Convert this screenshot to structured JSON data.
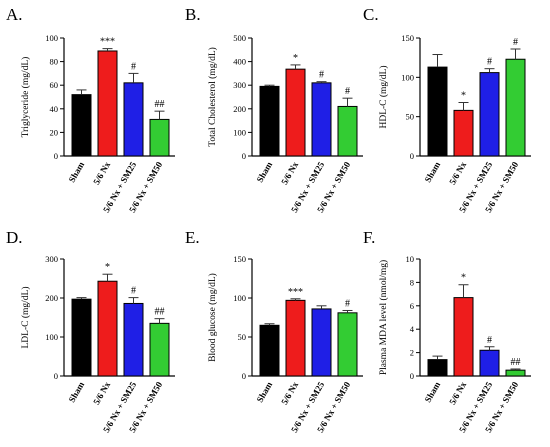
{
  "colors": {
    "Sham": "#000000",
    "5/6 Nx": "#ee1c1c",
    "5/6 Nx + SM25": "#1f1fe6",
    "5/6 Nx + SM50": "#33cc33"
  },
  "chart_data": [
    {
      "type": "bar",
      "panel": "A.",
      "categories": [
        "Sham",
        "5/6 Nx",
        "5/6 Nx + SM25",
        "5/6 Nx + SM50"
      ],
      "values": [
        52,
        89,
        62,
        31
      ],
      "errors": [
        4,
        2,
        8,
        7
      ],
      "significance": [
        "",
        "***",
        "#",
        "##"
      ],
      "ylabel": "Triglyceride (mg/dL)",
      "ylim": [
        0,
        100
      ],
      "yticks": [
        "0",
        "20",
        "40",
        "60",
        "80",
        "100"
      ]
    },
    {
      "type": "bar",
      "panel": "B.",
      "categories": [
        "Sham",
        "5/6 Nx",
        "5/6 Nx + SM25",
        "5/6 Nx + SM50"
      ],
      "values": [
        295,
        368,
        310,
        210
      ],
      "errors": [
        5,
        18,
        5,
        35
      ],
      "significance": [
        "",
        "*",
        "#",
        "#"
      ],
      "ylabel": "Total Cholesterol (mg/dL)",
      "ylim": [
        0,
        500
      ],
      "yticks": [
        "0",
        "100",
        "200",
        "300",
        "400",
        "500"
      ]
    },
    {
      "type": "bar",
      "panel": "C.",
      "categories": [
        "Sham",
        "5/6 Nx",
        "5/6 Nx + SM25",
        "5/6 Nx + SM50"
      ],
      "values": [
        113,
        58,
        106,
        123
      ],
      "errors": [
        16,
        10,
        5,
        13
      ],
      "significance": [
        "",
        "*",
        "#",
        "#"
      ],
      "ylabel": "HDL-C (mg/dL)",
      "ylim": [
        0,
        150
      ],
      "yticks": [
        "0",
        "50",
        "100",
        "150"
      ]
    },
    {
      "type": "bar",
      "panel": "D.",
      "categories": [
        "Sham",
        "5/6 Nx",
        "5/6 Nx + SM25",
        "5/6 Nx + SM50"
      ],
      "values": [
        197,
        243,
        186,
        135
      ],
      "errors": [
        4,
        18,
        15,
        12
      ],
      "significance": [
        "",
        "*",
        "#",
        "##"
      ],
      "ylabel": "LDL-C (mg/dL)",
      "ylim": [
        0,
        300
      ],
      "yticks": [
        "0",
        "100",
        "200",
        "300"
      ]
    },
    {
      "type": "bar",
      "panel": "E.",
      "categories": [
        "Sham",
        "5/6 Nx",
        "5/6 Nx + SM25",
        "5/6 Nx + SM50"
      ],
      "values": [
        65,
        97,
        86,
        81
      ],
      "errors": [
        2,
        2,
        4,
        3
      ],
      "significance": [
        "",
        "***",
        "",
        "#"
      ],
      "ylabel": "Blood glucose (mg/dL)",
      "ylim": [
        0,
        150
      ],
      "yticks": [
        "0",
        "50",
        "100",
        "150"
      ]
    },
    {
      "type": "bar",
      "panel": "F.",
      "categories": [
        "Sham",
        "5/6 Nx",
        "5/6 Nx + SM25",
        "5/6 Nx + SM50"
      ],
      "values": [
        1.4,
        6.7,
        2.2,
        0.5
      ],
      "errors": [
        0.3,
        1.1,
        0.3,
        0.1
      ],
      "significance": [
        "",
        "*",
        "#",
        "##"
      ],
      "ylabel": "Plasma MDA level (nmol/mg)",
      "ylim": [
        0,
        10
      ],
      "yticks": [
        "0",
        "2",
        "4",
        "6",
        "8",
        "10"
      ]
    }
  ]
}
